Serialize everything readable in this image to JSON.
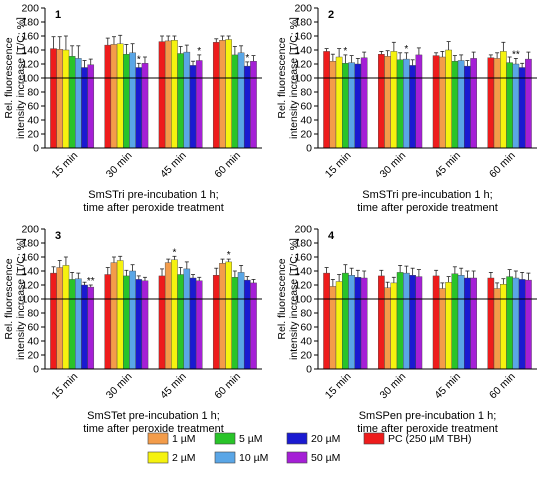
{
  "colors": {
    "1 µM": "#f39c4a",
    "2 µM": "#f5f20f",
    "5 µM": "#29c429",
    "10 µM": "#5aa6e6",
    "20 µM": "#1a1ad1",
    "50 µM": "#a51fd6",
    "PC (250 µM TBH)": "#ee1c1c"
  },
  "legend": {
    "position": "bottom",
    "items": [
      "1 µM",
      "2 µM",
      "5 µM",
      "10 µM",
      "20 µM",
      "50 µM",
      "PC (250 µM TBH)"
    ]
  },
  "chart_data": [
    {
      "panel_label": "1",
      "type": "bar",
      "ylabel_line1": "Rel. fluorescence",
      "ylabel_line2": "intensity increase [T/C; %]",
      "xlabel_line1": "SmSTri pre-incubation 1 h;",
      "xlabel_line2": "time after peroxide treatment",
      "ylim": [
        0,
        200
      ],
      "yticks": [
        0,
        20,
        40,
        60,
        80,
        100,
        120,
        140,
        160,
        180,
        200
      ],
      "reference_line": 100,
      "categories": [
        "15 min",
        "30 min",
        "45 min",
        "60 min"
      ],
      "series": [
        {
          "name": "PC (250 µM TBH)",
          "values": [
            142,
            147,
            152,
            151
          ],
          "errors": [
            17,
            10,
            8,
            5
          ],
          "marks": [
            "",
            "",
            "",
            ""
          ]
        },
        {
          "name": "1 µM",
          "values": [
            141,
            148,
            153,
            154
          ],
          "errors": [
            18,
            11,
            7,
            6
          ],
          "marks": [
            "",
            "",
            "",
            ""
          ]
        },
        {
          "name": "2 µM",
          "values": [
            140,
            149,
            154,
            155
          ],
          "errors": [
            20,
            12,
            6,
            5
          ],
          "marks": [
            "",
            "",
            "",
            ""
          ]
        },
        {
          "name": "5 µM",
          "values": [
            131,
            134,
            135,
            133
          ],
          "errors": [
            15,
            14,
            10,
            12
          ],
          "marks": [
            "",
            "",
            "",
            ""
          ]
        },
        {
          "name": "10 µM",
          "values": [
            128,
            136,
            137,
            136
          ],
          "errors": [
            18,
            13,
            10,
            10
          ],
          "marks": [
            "",
            "",
            "",
            ""
          ]
        },
        {
          "name": "20 µM",
          "values": [
            115,
            115,
            118,
            117
          ],
          "errors": [
            10,
            6,
            6,
            6
          ],
          "marks": [
            "",
            "*",
            "",
            "*"
          ]
        },
        {
          "name": "50 µM",
          "values": [
            119,
            121,
            125,
            124
          ],
          "errors": [
            8,
            9,
            8,
            8
          ],
          "marks": [
            "",
            "",
            "*",
            ""
          ]
        }
      ]
    },
    {
      "panel_label": "2",
      "type": "bar",
      "ylabel_line1": "Rel. fluorescence",
      "ylabel_line2": "intensity increase [T/C; %]",
      "xlabel_line1": "SmSTri pre-incubation 1 h;",
      "xlabel_line2": "time after peroxide treatment",
      "ylim": [
        0,
        200
      ],
      "yticks": [
        0,
        20,
        40,
        60,
        80,
        100,
        120,
        140,
        160,
        180,
        200
      ],
      "reference_line": 100,
      "categories": [
        "15 min",
        "30 min",
        "45 min",
        "60 min"
      ],
      "series": [
        {
          "name": "PC (250 µM TBH)",
          "values": [
            138,
            134,
            132,
            129
          ],
          "errors": [
            4,
            4,
            4,
            4
          ],
          "marks": [
            "",
            "",
            "",
            ""
          ]
        },
        {
          "name": "1 µM",
          "values": [
            124,
            131,
            130,
            128
          ],
          "errors": [
            10,
            8,
            8,
            8
          ],
          "marks": [
            "",
            "",
            "",
            ""
          ]
        },
        {
          "name": "2 µM",
          "values": [
            130,
            138,
            140,
            138
          ],
          "errors": [
            12,
            13,
            12,
            13
          ],
          "marks": [
            "",
            "",
            "",
            ""
          ]
        },
        {
          "name": "5 µM",
          "values": [
            121,
            126,
            124,
            122
          ],
          "errors": [
            12,
            10,
            8,
            8
          ],
          "marks": [
            "*",
            "",
            "",
            ""
          ]
        },
        {
          "name": "10 µM",
          "values": [
            122,
            127,
            125,
            120
          ],
          "errors": [
            10,
            9,
            8,
            8
          ],
          "marks": [
            "",
            "*",
            "",
            "**"
          ]
        },
        {
          "name": "20 µM",
          "values": [
            120,
            118,
            117,
            115
          ],
          "errors": [
            8,
            8,
            8,
            6
          ],
          "marks": [
            "",
            "",
            "",
            ""
          ]
        },
        {
          "name": "50 µM",
          "values": [
            129,
            133,
            128,
            127
          ],
          "errors": [
            8,
            10,
            9,
            10
          ],
          "marks": [
            "",
            "",
            "",
            ""
          ]
        }
      ]
    },
    {
      "panel_label": "3",
      "type": "bar",
      "ylabel_line1": "Rel. fluorescence",
      "ylabel_line2": "intensity increase [T/C; %]",
      "xlabel_line1": "SmSTet pre-incubation 1 h;",
      "xlabel_line2": "time after peroxide treatment",
      "ylim": [
        0,
        200
      ],
      "yticks": [
        0,
        20,
        40,
        60,
        80,
        100,
        120,
        140,
        160,
        180,
        200
      ],
      "reference_line": 100,
      "categories": [
        "15 min",
        "30 min",
        "45 min",
        "60 min"
      ],
      "series": [
        {
          "name": "PC (250 µM TBH)",
          "values": [
            137,
            135,
            133,
            134
          ],
          "errors": [
            9,
            10,
            10,
            10
          ],
          "marks": [
            "",
            "",
            "",
            ""
          ]
        },
        {
          "name": "1 µM",
          "values": [
            145,
            152,
            152,
            151
          ],
          "errors": [
            10,
            8,
            5,
            6
          ],
          "marks": [
            "",
            "",
            "",
            ""
          ]
        },
        {
          "name": "2 µM",
          "values": [
            148,
            155,
            156,
            153
          ],
          "errors": [
            12,
            6,
            5,
            4
          ],
          "marks": [
            "",
            "",
            "*",
            "*"
          ]
        },
        {
          "name": "5 µM",
          "values": [
            128,
            133,
            135,
            131
          ],
          "errors": [
            10,
            8,
            10,
            9
          ],
          "marks": [
            "",
            "",
            "",
            ""
          ]
        },
        {
          "name": "10 µM",
          "values": [
            129,
            140,
            143,
            138
          ],
          "errors": [
            8,
            9,
            10,
            10
          ],
          "marks": [
            "",
            "",
            "",
            ""
          ]
        },
        {
          "name": "20 µM",
          "values": [
            120,
            128,
            130,
            127
          ],
          "errors": [
            4,
            5,
            5,
            5
          ],
          "marks": [
            "",
            "",
            "",
            ""
          ]
        },
        {
          "name": "50 µM",
          "values": [
            117,
            126,
            126,
            123
          ],
          "errors": [
            3,
            5,
            5,
            5
          ],
          "marks": [
            "**",
            "",
            "",
            ""
          ]
        }
      ]
    },
    {
      "panel_label": "4",
      "type": "bar",
      "ylabel_line1": "Rel. fluorescence",
      "ylabel_line2": "intensity increase [T/C; %]",
      "xlabel_line1": "SmSPen pre-incubation 1 h;",
      "xlabel_line2": "time after peroxide treatment",
      "ylim": [
        0,
        200
      ],
      "yticks": [
        0,
        20,
        40,
        60,
        80,
        100,
        120,
        140,
        160,
        180,
        200
      ],
      "reference_line": 100,
      "categories": [
        "15 min",
        "30 min",
        "45 min",
        "60 min"
      ],
      "series": [
        {
          "name": "PC (250 µM TBH)",
          "values": [
            137,
            133,
            133,
            130
          ],
          "errors": [
            8,
            8,
            8,
            8
          ],
          "marks": [
            "",
            "",
            "",
            ""
          ]
        },
        {
          "name": "1 µM",
          "values": [
            118,
            116,
            115,
            115
          ],
          "errors": [
            10,
            8,
            8,
            8
          ],
          "marks": [
            "",
            "",
            "",
            ""
          ]
        },
        {
          "name": "2 µM",
          "values": [
            125,
            123,
            124,
            121
          ],
          "errors": [
            10,
            8,
            8,
            8
          ],
          "marks": [
            "",
            "",
            "",
            ""
          ]
        },
        {
          "name": "5 µM",
          "values": [
            137,
            138,
            136,
            132
          ],
          "errors": [
            12,
            10,
            10,
            10
          ],
          "marks": [
            "",
            "",
            "",
            ""
          ]
        },
        {
          "name": "10 µM",
          "values": [
            134,
            137,
            134,
            130
          ],
          "errors": [
            10,
            10,
            10,
            10
          ],
          "marks": [
            "",
            "",
            "",
            ""
          ]
        },
        {
          "name": "20 µM",
          "values": [
            131,
            134,
            130,
            128
          ],
          "errors": [
            10,
            10,
            10,
            10
          ],
          "marks": [
            "",
            "",
            "",
            ""
          ]
        },
        {
          "name": "50 µM",
          "values": [
            130,
            132,
            130,
            127
          ],
          "errors": [
            10,
            10,
            10,
            10
          ],
          "marks": [
            "",
            "",
            "",
            ""
          ]
        }
      ]
    }
  ]
}
